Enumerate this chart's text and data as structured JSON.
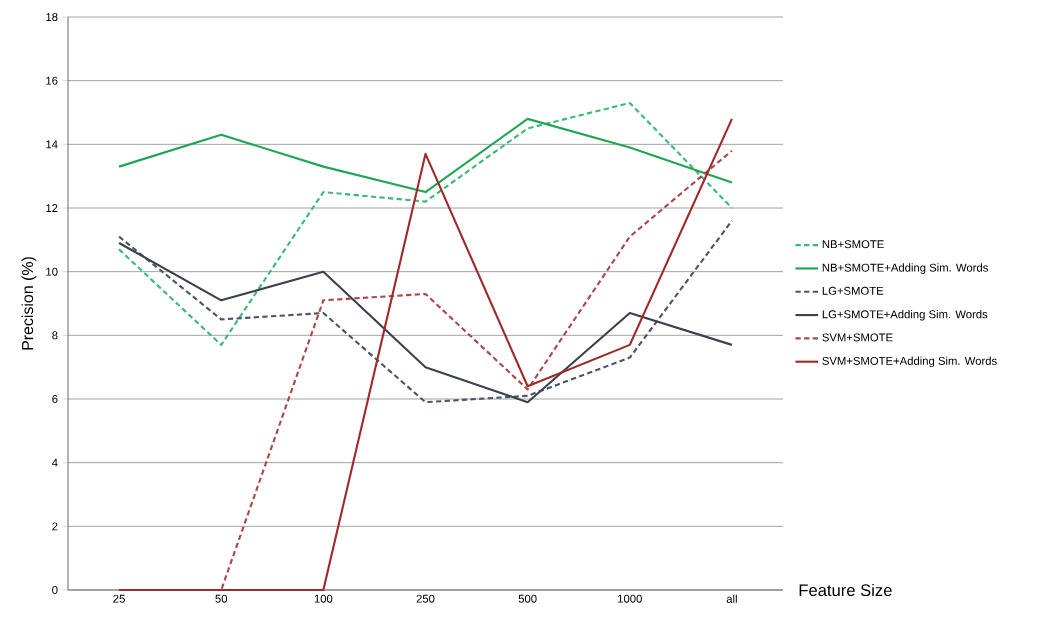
{
  "chart_data": {
    "type": "line",
    "xlabel": "Feature Size",
    "ylabel": "Precision (%)",
    "categories": [
      "25",
      "50",
      "100",
      "250",
      "500",
      "1000",
      "all"
    ],
    "ylim": [
      0,
      18
    ],
    "yticks": [
      0,
      2,
      4,
      6,
      8,
      10,
      12,
      14,
      16,
      18
    ],
    "grid": "y",
    "legend": "right",
    "series": [
      {
        "name": "NB+SMOTE",
        "color": "#3cb878",
        "line_style": "dashed",
        "values": [
          10.7,
          7.7,
          12.5,
          12.2,
          14.5,
          15.3,
          12.0
        ]
      },
      {
        "name": "NB+SMOTE+Adding Sim. Words",
        "color": "#1fa653",
        "line_style": "solid",
        "values": [
          13.3,
          14.3,
          13.3,
          12.5,
          14.8,
          13.9,
          12.8
        ]
      },
      {
        "name": "LG+SMOTE",
        "color": "#4a5568",
        "line_style": "dashed",
        "values": [
          11.1,
          8.5,
          8.7,
          5.9,
          6.1,
          7.3,
          11.6
        ]
      },
      {
        "name": "LG+SMOTE+Adding Sim. Words",
        "color": "#3a4250",
        "line_style": "solid",
        "values": [
          10.9,
          9.1,
          10.0,
          7.0,
          5.9,
          8.7,
          7.7
        ]
      },
      {
        "name": "SVM+SMOTE",
        "color": "#a84a4a",
        "line_style": "dashed",
        "values": [
          0,
          0,
          9.1,
          9.3,
          6.3,
          11.1,
          13.8
        ]
      },
      {
        "name": "SVM+SMOTE+Adding Sim. Words",
        "color": "#9e2a2b",
        "line_style": "solid",
        "values": [
          0,
          0,
          0,
          13.7,
          6.4,
          7.7,
          14.8
        ]
      }
    ]
  }
}
